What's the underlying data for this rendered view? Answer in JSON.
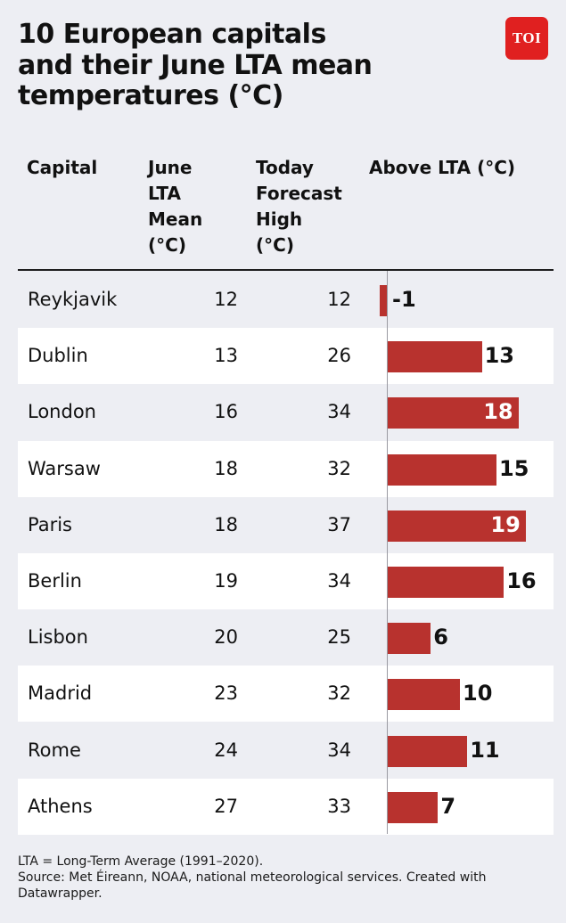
{
  "title": "10 European capitals\nand their June LTA mean\ntemperatures (°C)",
  "logo": "TOI",
  "headers": {
    "capital": "Capital",
    "lta": "June\nLTA\nMean\n(°C)",
    "forecast": "Today\nForecast\nHigh\n(°C)",
    "above": "Above LTA (°C)"
  },
  "colors": {
    "bar": "#b8322e",
    "logo": "#e02020",
    "background": "#edeef3",
    "row_alt": "#ffffff"
  },
  "chart_data": {
    "type": "table",
    "columns": [
      "Capital",
      "June LTA Mean (°C)",
      "Today Forecast High (°C)",
      "Above LTA (°C)"
    ],
    "rows": [
      {
        "capital": "Reykjavik",
        "lta": 12,
        "forecast": 12,
        "above": -1
      },
      {
        "capital": "Dublin",
        "lta": 13,
        "forecast": 26,
        "above": 13
      },
      {
        "capital": "London",
        "lta": 16,
        "forecast": 34,
        "above": 18
      },
      {
        "capital": "Warsaw",
        "lta": 18,
        "forecast": 32,
        "above": 15
      },
      {
        "capital": "Paris",
        "lta": 18,
        "forecast": 37,
        "above": 19
      },
      {
        "capital": "Berlin",
        "lta": 19,
        "forecast": 34,
        "above": 16
      },
      {
        "capital": "Lisbon",
        "lta": 20,
        "forecast": 25,
        "above": 6
      },
      {
        "capital": "Madrid",
        "lta": 23,
        "forecast": 32,
        "above": 10
      },
      {
        "capital": "Rome",
        "lta": 24,
        "forecast": 34,
        "above": 11
      },
      {
        "capital": "Athens",
        "lta": 27,
        "forecast": 33,
        "above": 7
      }
    ],
    "bar_range": [
      -1,
      19
    ]
  },
  "footer": {
    "line1": "LTA = Long-Term Average (1991–2020).",
    "line2": "Source: Met Éireann, NOAA, national meteorological services. Created with Datawrapper."
  }
}
